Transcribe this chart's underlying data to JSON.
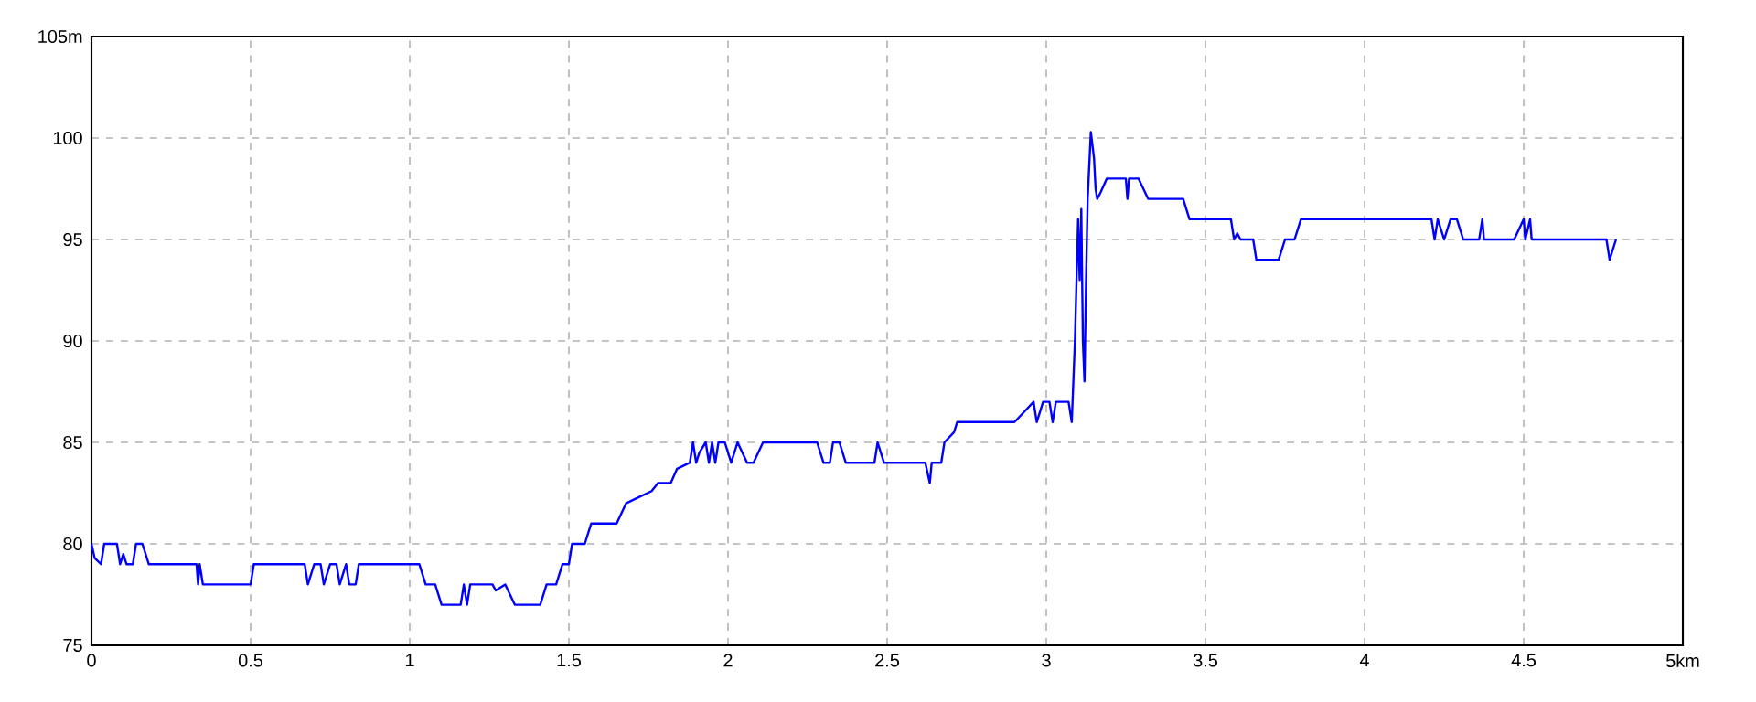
{
  "chart_data": {
    "type": "line",
    "xlim": [
      0,
      5
    ],
    "ylim": [
      75,
      105
    ],
    "xticks": [
      0,
      0.5,
      1,
      1.5,
      2,
      2.5,
      3,
      3.5,
      4,
      4.5,
      {
        "value": 5,
        "label": "5km"
      }
    ],
    "yticks": [
      75,
      80,
      85,
      90,
      95,
      100,
      {
        "value": 105,
        "label": "105m"
      }
    ],
    "grid": true,
    "line_style": "solid",
    "series": [
      {
        "color": "#0000ff",
        "x": [
          0,
          0.01,
          0.03,
          0.04,
          0.08,
          0.09,
          0.1,
          0.11,
          0.13,
          0.14,
          0.16,
          0.18,
          0.33,
          0.335,
          0.34,
          0.35,
          0.5,
          0.51,
          0.67,
          0.68,
          0.7,
          0.72,
          0.73,
          0.75,
          0.77,
          0.78,
          0.8,
          0.81,
          0.83,
          0.84,
          1.03,
          1.05,
          1.08,
          1.1,
          1.16,
          1.17,
          1.18,
          1.19,
          1.26,
          1.27,
          1.3,
          1.33,
          1.41,
          1.43,
          1.46,
          1.48,
          1.5,
          1.51,
          1.55,
          1.57,
          1.65,
          1.68,
          1.72,
          1.76,
          1.78,
          1.82,
          1.84,
          1.88,
          1.89,
          1.9,
          1.91,
          1.93,
          1.94,
          1.95,
          1.96,
          1.97,
          1.99,
          2.01,
          2.03,
          2.06,
          2.08,
          2.11,
          2.28,
          2.3,
          2.32,
          2.33,
          2.35,
          2.37,
          2.46,
          2.47,
          2.49,
          2.62,
          2.634,
          2.64,
          2.67,
          2.68,
          2.71,
          2.72,
          2.9,
          2.93,
          2.96,
          2.97,
          2.99,
          3.01,
          3.02,
          3.03,
          3.04,
          3.07,
          3.08,
          3.09,
          3.1,
          3.105,
          3.11,
          3.115,
          3.12,
          3.125,
          3.13,
          3.14,
          3.15,
          3.155,
          3.16,
          3.17,
          3.19,
          3.25,
          3.255,
          3.26,
          3.29,
          3.32,
          3.43,
          3.45,
          3.58,
          3.59,
          3.6,
          3.61,
          3.65,
          3.66,
          3.73,
          3.75,
          3.78,
          3.8,
          4.21,
          4.22,
          4.23,
          4.25,
          4.27,
          4.29,
          4.31,
          4.36,
          4.37,
          4.375,
          4.47,
          4.5,
          4.505,
          4.52,
          4.525,
          4.76,
          4.77,
          4.79
        ],
        "values": [
          80,
          79.3,
          79,
          80,
          80,
          79,
          79.5,
          79,
          79,
          80,
          80,
          79,
          79,
          78,
          79,
          78,
          78,
          79,
          79,
          78,
          79,
          79,
          78,
          79,
          79,
          78,
          79,
          78,
          78,
          79,
          79,
          78,
          78,
          77,
          77,
          78,
          77,
          78,
          78,
          77.7,
          78,
          77,
          77,
          78,
          78,
          79,
          79,
          80,
          80,
          81,
          81,
          82,
          82.3,
          82.6,
          83,
          83,
          83.7,
          84,
          85,
          84,
          84.5,
          85,
          84,
          85,
          84,
          85,
          85,
          84,
          85,
          84,
          84,
          85,
          85,
          84,
          84,
          85,
          85,
          84,
          84,
          85,
          84,
          84,
          83,
          84,
          84,
          85,
          85.5,
          86,
          86,
          86.5,
          87,
          86,
          87,
          87,
          86,
          87,
          87,
          87,
          86,
          90,
          96,
          93,
          96.5,
          90,
          88,
          93,
          97,
          100.3,
          99,
          97.5,
          97,
          97.3,
          98,
          98,
          97,
          98,
          98,
          97,
          97,
          96,
          96,
          95,
          95.3,
          95,
          95,
          94,
          94,
          95,
          95,
          96,
          96,
          95,
          96,
          95,
          96,
          96,
          95,
          95,
          96,
          95,
          95,
          96,
          95,
          96,
          95,
          95,
          94,
          95
        ]
      }
    ]
  }
}
